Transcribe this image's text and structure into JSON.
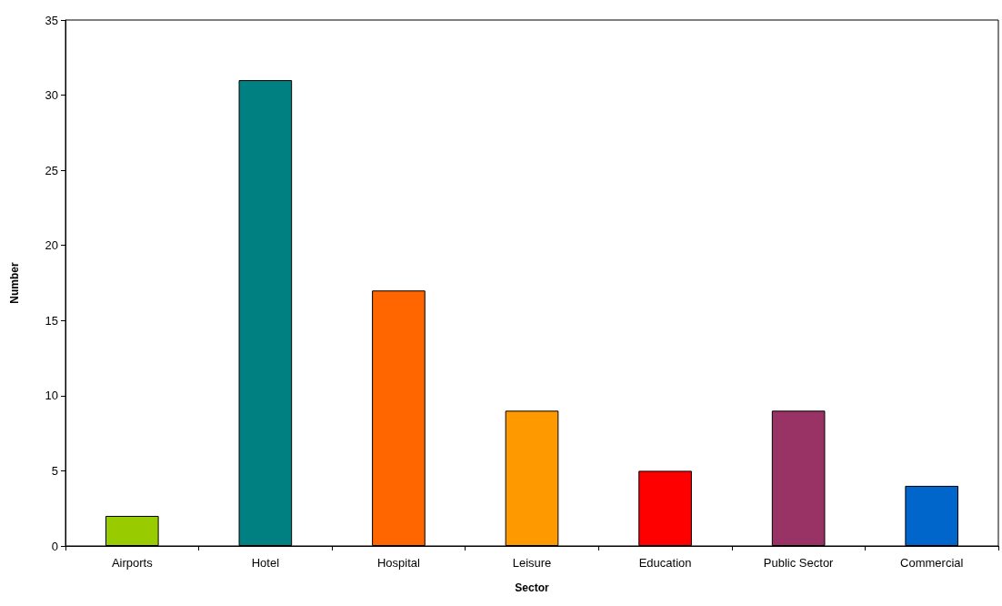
{
  "chart_data": {
    "type": "bar",
    "xlabel": "Sector",
    "ylabel": "Number",
    "categories": [
      "Airports",
      "Hotel",
      "Hospital",
      "Leisure",
      "Education",
      "Public Sector",
      "Commercial"
    ],
    "values": [
      2,
      31,
      17,
      9,
      5,
      9,
      4
    ],
    "colors": [
      "#99cc00",
      "#008080",
      "#ff6600",
      "#ff9900",
      "#ff0000",
      "#993366",
      "#0066cc"
    ],
    "ylim": [
      0,
      35
    ],
    "yticks": [
      0,
      5,
      10,
      15,
      20,
      25,
      30,
      35
    ]
  }
}
